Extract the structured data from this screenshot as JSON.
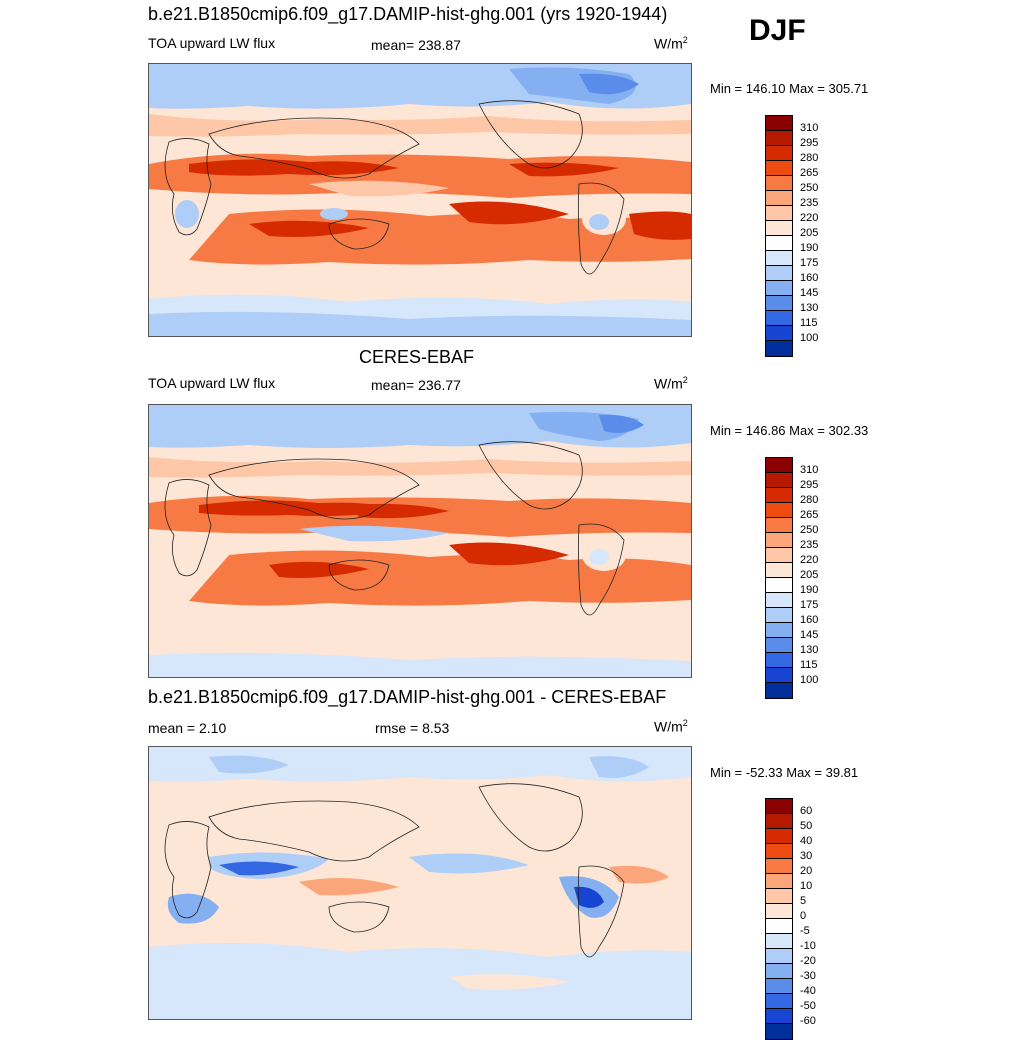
{
  "season": "DJF",
  "panels": [
    {
      "title": "b.e21.B1850cmip6.f09_g17.DAMIP-hist-ghg.001 (yrs 1920-1944)",
      "left_label": "TOA upward LW flux",
      "center_label": "mean= 238.87",
      "units": "W/m",
      "units_sup": "2",
      "minmax": "Min = 146.10 Max = 305.71",
      "colorbar_ticks": [
        "310",
        "295",
        "280",
        "265",
        "250",
        "235",
        "220",
        "205",
        "190",
        "175",
        "160",
        "145",
        "130",
        "115",
        "100"
      ],
      "colorbar_colors": [
        "#8b0000",
        "#b51a00",
        "#d62a00",
        "#ed4b10",
        "#f77a45",
        "#fba57a",
        "#fdc7a8",
        "#fde6d6",
        "#ffffff",
        "#d6e6fb",
        "#aecdf7",
        "#84aff1",
        "#5a8de9",
        "#3467e2",
        "#1844d4",
        "#002f9c"
      ]
    },
    {
      "title": "CERES-EBAF",
      "left_label": "TOA upward LW flux",
      "center_label": "mean= 236.77",
      "units": "W/m",
      "units_sup": "2",
      "minmax": "Min = 146.86 Max = 302.33",
      "colorbar_ticks": [
        "310",
        "295",
        "280",
        "265",
        "250",
        "235",
        "220",
        "205",
        "190",
        "175",
        "160",
        "145",
        "130",
        "115",
        "100"
      ],
      "colorbar_colors": [
        "#8b0000",
        "#b51a00",
        "#d62a00",
        "#ed4b10",
        "#f77a45",
        "#fba57a",
        "#fdc7a8",
        "#fde6d6",
        "#ffffff",
        "#d6e6fb",
        "#aecdf7",
        "#84aff1",
        "#5a8de9",
        "#3467e2",
        "#1844d4",
        "#002f9c"
      ]
    },
    {
      "title": "b.e21.B1850cmip6.f09_g17.DAMIP-hist-ghg.001 - CERES-EBAF",
      "left_label": "mean =   2.10",
      "center_label": "rmse =   8.53",
      "units": "W/m",
      "units_sup": "2",
      "minmax": "Min = -52.33 Max =  39.81",
      "colorbar_ticks": [
        "60",
        "50",
        "40",
        "30",
        "20",
        "10",
        "5",
        "0",
        "-5",
        "-10",
        "-20",
        "-30",
        "-40",
        "-50",
        "-60"
      ],
      "colorbar_colors": [
        "#8b0000",
        "#b51a00",
        "#d62a00",
        "#ed4b10",
        "#f77a45",
        "#fba57a",
        "#fdc7a8",
        "#fde6d6",
        "#ffffff",
        "#d6e6fb",
        "#aecdf7",
        "#84aff1",
        "#5a8de9",
        "#3467e2",
        "#1844d4",
        "#002f9c"
      ]
    }
  ]
}
